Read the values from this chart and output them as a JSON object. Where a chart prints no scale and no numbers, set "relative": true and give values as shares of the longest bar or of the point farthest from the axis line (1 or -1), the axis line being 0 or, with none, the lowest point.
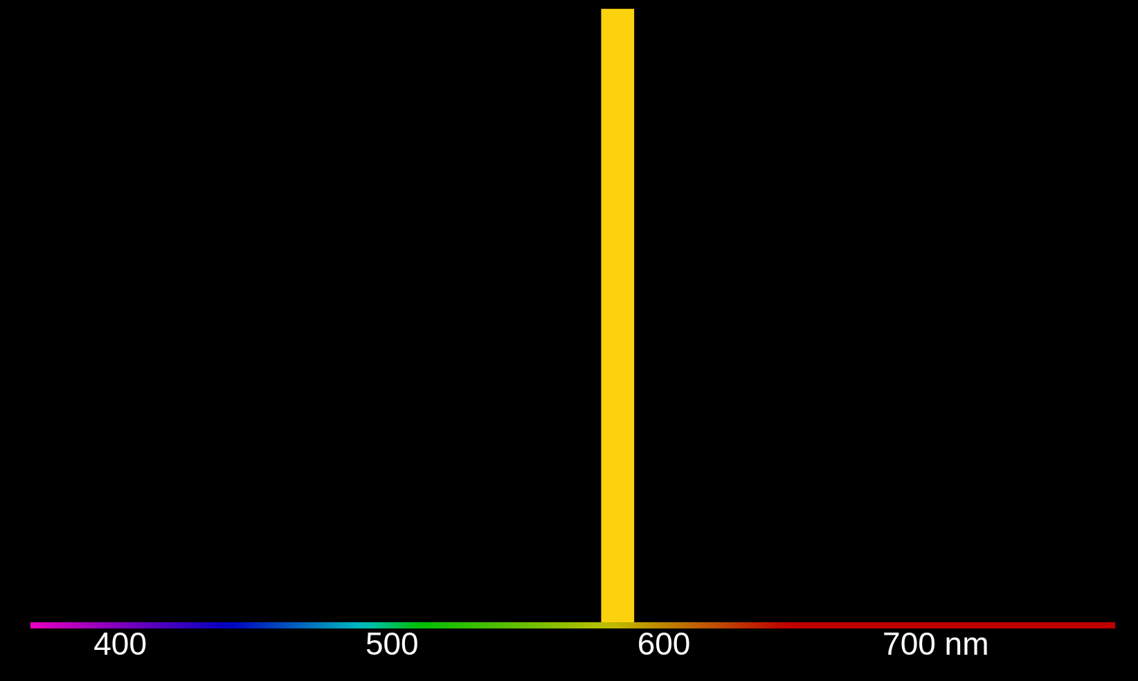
{
  "chart_data": {
    "type": "bar",
    "relative": true,
    "x": [
      583
    ],
    "values": [
      1
    ],
    "color": "#fcd20f",
    "xlim": [
      367,
      766
    ],
    "xticks": [
      400,
      500,
      600,
      {
        "value": 700,
        "label": "700 nm"
      }
    ],
    "grid": false,
    "legend": false
  }
}
